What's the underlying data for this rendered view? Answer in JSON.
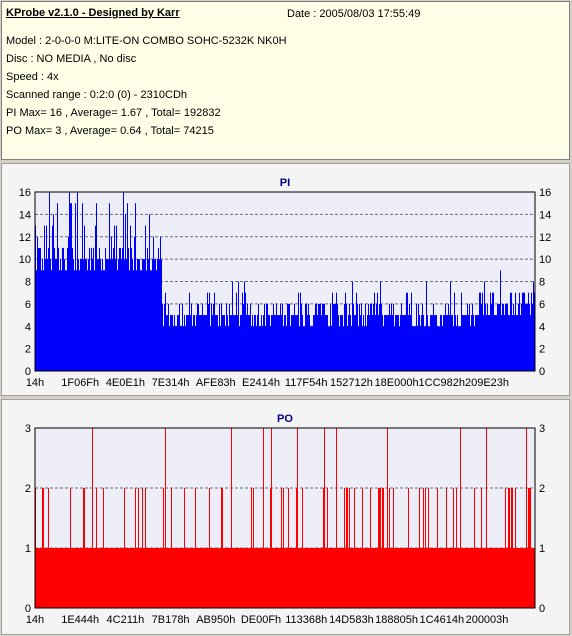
{
  "header": {
    "app_title": "KProbe v2.1.0 - Designed by Karr",
    "date": "Date : 2005/08/03 17:55:49",
    "model": "Model : 2-0-0-0 M:LITE-ON COMBO SOHC-5232K NK0H",
    "disc": "Disc : NO MEDIA , No disc",
    "speed": "Speed : 4x",
    "scanned_range": "Scanned range : 0:2:0 (0) - 2310CDh",
    "pi_summary": "PI Max= 16 , Average= 1.67 , Total= 192832",
    "po_summary": "PO Max= 3 , Average= 0.64 , Total= 74215"
  },
  "chart_data": [
    {
      "type": "bar",
      "title": "PI",
      "ylim": [
        0,
        16
      ],
      "yticks": [
        0,
        2,
        4,
        6,
        8,
        10,
        12,
        14,
        16
      ],
      "xticks": [
        "14h",
        "1F06Fh",
        "4E0E1h",
        "7E314h",
        "AFE83h",
        "E2414h",
        "117F54h",
        "152712h",
        "18E000h",
        "1CC982h",
        "209E23h"
      ],
      "grid": true,
      "color": "#0000ff",
      "profile": [
        {
          "segment": "14h-7E314h",
          "base": 9,
          "peak": 16
        },
        {
          "segment": "7E314h-1CC982h",
          "base": 4,
          "peak": 8
        },
        {
          "segment": "1CC982h-end",
          "base": 5,
          "peak": 9
        }
      ],
      "max": 16,
      "average": 1.67
    },
    {
      "type": "bar",
      "title": "PO",
      "ylim": [
        0,
        3
      ],
      "yticks": [
        0,
        1,
        2,
        3
      ],
      "xticks": [
        "14h",
        "1E444h",
        "4C211h",
        "7B178h",
        "AB950h",
        "DE00Fh",
        "113368h",
        "14D583h",
        "188805h",
        "1C4614h",
        "200003h"
      ],
      "grid": true,
      "color": "#ff0000",
      "profile": [
        {
          "segment": "14h-end",
          "base": 1,
          "peak": 3
        }
      ],
      "max": 3,
      "average": 0.64
    }
  ]
}
